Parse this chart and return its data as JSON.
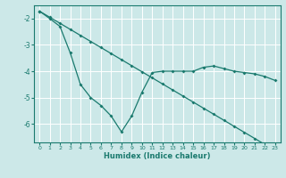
{
  "xlabel": "Humidex (Indice chaleur)",
  "background_color": "#cce8e8",
  "grid_color": "#ffffff",
  "line_color": "#1a7a6e",
  "xlim": [
    -0.5,
    23.5
  ],
  "ylim": [
    -6.7,
    -1.5
  ],
  "yticks": [
    -6,
    -5,
    -4,
    -3,
    -2
  ],
  "xticks": [
    0,
    1,
    2,
    3,
    4,
    5,
    6,
    7,
    8,
    9,
    10,
    11,
    12,
    13,
    14,
    15,
    16,
    17,
    18,
    19,
    20,
    21,
    22,
    23
  ],
  "line1_x": [
    0,
    1,
    2,
    3,
    4,
    5,
    6,
    7,
    8,
    9,
    10,
    11,
    12,
    13,
    14,
    15,
    16,
    17,
    18,
    19,
    20,
    21,
    22,
    23
  ],
  "line1_y": [
    -1.72,
    -1.95,
    -2.18,
    -2.41,
    -2.64,
    -2.87,
    -3.1,
    -3.33,
    -3.56,
    -3.79,
    -4.02,
    -4.25,
    -4.48,
    -4.71,
    -4.94,
    -5.17,
    -5.4,
    -5.63,
    -5.86,
    -6.09,
    -6.32,
    -6.55,
    -6.78,
    -7.01
  ],
  "line2_x": [
    0,
    1,
    2,
    3,
    4,
    5,
    6,
    7,
    8,
    9,
    10,
    11,
    12,
    13,
    14,
    15,
    16,
    17,
    18,
    19,
    20,
    21,
    22,
    23
  ],
  "line2_y": [
    -1.72,
    -2.0,
    -2.3,
    -3.3,
    -4.5,
    -5.0,
    -5.3,
    -5.7,
    -6.3,
    -5.7,
    -4.8,
    -4.05,
    -4.0,
    -4.0,
    -4.0,
    -4.0,
    -3.85,
    -3.8,
    -3.9,
    -4.0,
    -4.05,
    -4.1,
    -4.2,
    -4.35
  ]
}
